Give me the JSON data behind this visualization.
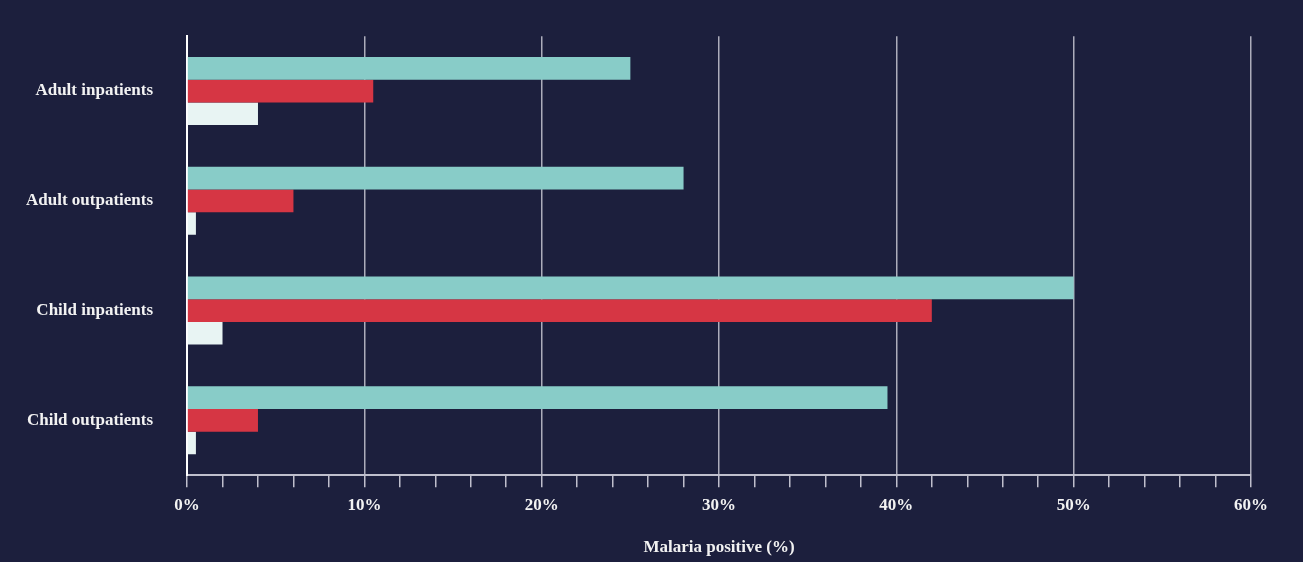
{
  "chart_data": {
    "type": "bar",
    "orientation": "horizontal",
    "xlabel": "Malaria positive (%)",
    "categories": [
      "Adult inpatients",
      "Adult outpatients",
      "Child inpatients",
      "Child outpatients"
    ],
    "series": [
      {
        "color": "#88ccc8",
        "values": [
          25,
          28,
          50,
          39.5
        ]
      },
      {
        "color": "#d63644",
        "values": [
          10.5,
          6,
          42,
          4
        ]
      },
      {
        "color": "#e8f4f3",
        "values": [
          4,
          0.5,
          2,
          0.5
        ]
      }
    ],
    "xlim": [
      0,
      60
    ],
    "xticks": [
      {
        "value": 0,
        "label": "0%"
      },
      {
        "value": 2,
        "label": null
      },
      {
        "value": 4,
        "label": null
      },
      {
        "value": 6,
        "label": null
      },
      {
        "value": 8,
        "label": null
      },
      {
        "value": 10,
        "label": "10%"
      },
      {
        "value": 12,
        "label": null
      },
      {
        "value": 14,
        "label": null
      },
      {
        "value": 16,
        "label": null
      },
      {
        "value": 18,
        "label": null
      },
      {
        "value": 20,
        "label": "20%"
      },
      {
        "value": 22,
        "label": null
      },
      {
        "value": 24,
        "label": null
      },
      {
        "value": 26,
        "label": null
      },
      {
        "value": 28,
        "label": null
      },
      {
        "value": 30,
        "label": "30%"
      },
      {
        "value": 32,
        "label": null
      },
      {
        "value": 34,
        "label": null
      },
      {
        "value": 36,
        "label": null
      },
      {
        "value": 38,
        "label": null
      },
      {
        "value": 40,
        "label": "40%"
      },
      {
        "value": 42,
        "label": null
      },
      {
        "value": 44,
        "label": null
      },
      {
        "value": 46,
        "label": null
      },
      {
        "value": 48,
        "label": null
      },
      {
        "value": 50,
        "label": "50%"
      },
      {
        "value": 52,
        "label": null
      },
      {
        "value": 54,
        "label": null
      },
      {
        "value": 56,
        "label": null
      },
      {
        "value": 58,
        "label": null
      },
      {
        "value": 60,
        "label": "60%"
      }
    ],
    "grid": "x",
    "legend": false
  }
}
